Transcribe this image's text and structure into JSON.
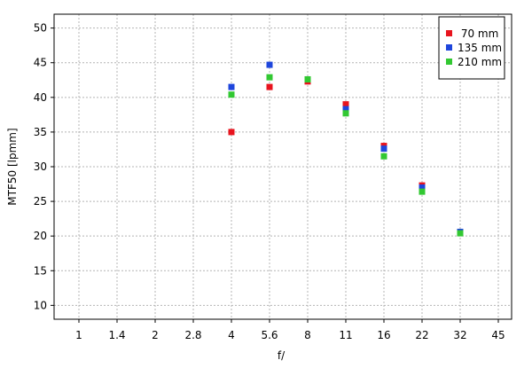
{
  "chart_data": {
    "type": "scatter",
    "title": "",
    "xlabel": "f/",
    "ylabel": "MTF50 [lpmm]",
    "x_categories": [
      "1",
      "1.4",
      "2",
      "2.8",
      "4",
      "5.6",
      "8",
      "11",
      "16",
      "22",
      "32",
      "45"
    ],
    "y_ticks": [
      10,
      15,
      20,
      25,
      30,
      35,
      40,
      45,
      50
    ],
    "ylim": [
      8,
      52
    ],
    "grid": true,
    "legend_position": "top-right",
    "series": [
      {
        "name": " 70 mm",
        "color": "#e8141e",
        "points": [
          {
            "x": "4",
            "y": 35.0
          },
          {
            "x": "5.6",
            "y": 41.5
          },
          {
            "x": "8",
            "y": 42.3
          },
          {
            "x": "11",
            "y": 39.0
          },
          {
            "x": "16",
            "y": 33.0
          },
          {
            "x": "22",
            "y": 27.3
          },
          {
            "x": "32",
            "y": 20.6
          }
        ]
      },
      {
        "name": "135 mm",
        "color": "#1e46dc",
        "points": [
          {
            "x": "4",
            "y": 41.5
          },
          {
            "x": "5.6",
            "y": 44.7
          },
          {
            "x": "8",
            "y": 42.6
          },
          {
            "x": "11",
            "y": 38.3
          },
          {
            "x": "16",
            "y": 32.6
          },
          {
            "x": "22",
            "y": 27.0
          },
          {
            "x": "32",
            "y": 20.6
          }
        ]
      },
      {
        "name": "210 mm",
        "color": "#32c832",
        "points": [
          {
            "x": "4",
            "y": 40.4
          },
          {
            "x": "5.6",
            "y": 42.9
          },
          {
            "x": "8",
            "y": 42.6
          },
          {
            "x": "11",
            "y": 37.7
          },
          {
            "x": "16",
            "y": 31.5
          },
          {
            "x": "22",
            "y": 26.4
          },
          {
            "x": "32",
            "y": 20.4
          }
        ]
      }
    ]
  }
}
